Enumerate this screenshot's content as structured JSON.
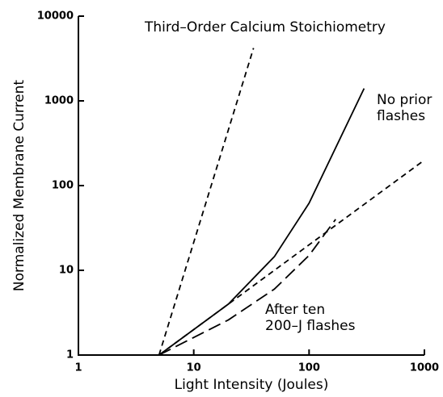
{
  "chart_data": {
    "type": "line",
    "title": "Third–Order Calcium Stoichiometry",
    "x_label": "Light Intensity (Joules)",
    "y_label": "Normalized Membrane Current",
    "xlog": true,
    "ylog": true,
    "xlim": [
      1,
      1000
    ],
    "ylim": [
      1,
      10000
    ],
    "xticks": [
      1,
      10,
      100,
      1000
    ],
    "yticks": [
      1,
      10,
      100,
      1000,
      10000
    ],
    "series": [
      {
        "color": "#000000",
        "dash": "short",
        "x": [
          5,
          33
        ],
        "y": [
          1,
          4200
        ]
      },
      {
        "color": "#000000",
        "dash": "solid",
        "x": [
          5,
          20,
          50,
          100,
          300
        ],
        "y": [
          1,
          4,
          14.5,
          62,
          1400
        ]
      },
      {
        "color": "#000000",
        "dash": "long",
        "x": [
          5,
          20,
          50,
          100,
          170
        ],
        "y": [
          1,
          2.6,
          6,
          15,
          40
        ]
      },
      {
        "color": "#000000",
        "dash": "short",
        "x": [
          5,
          1000
        ],
        "y": [
          1,
          200
        ]
      }
    ],
    "annotations": [
      {
        "lines": [
          "No prior",
          "flashes"
        ]
      },
      {
        "lines": [
          "After ten",
          "200–J flashes"
        ]
      }
    ]
  }
}
